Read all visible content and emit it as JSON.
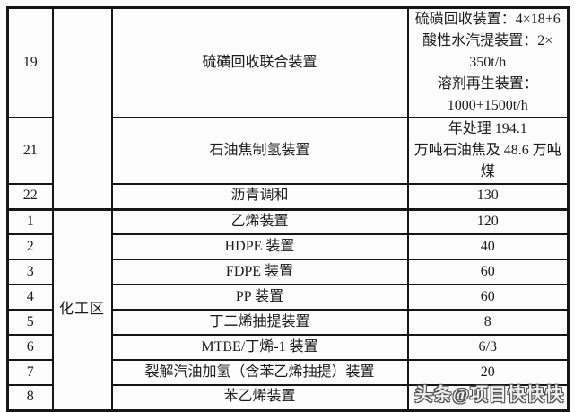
{
  "table": {
    "zone_upper_label": "",
    "zone_lower_label": "化工区",
    "rows": [
      {
        "num": "19",
        "device": "硫磺回收联合装置",
        "value_lines": [
          "硫磺回收装置：4×18+6",
          "酸性水汽提装置：2×",
          "350t/h",
          "溶剂再生装置：",
          "1000+1500t/h"
        ]
      },
      {
        "num": "21",
        "device": "石油焦制氢装置",
        "value_lines": [
          "年处理 194.1",
          "万吨石油焦及 48.6 万吨",
          "煤"
        ]
      },
      {
        "num": "22",
        "device": "沥青调和",
        "value": "130"
      },
      {
        "num": "1",
        "device": "乙烯装置",
        "value": "120"
      },
      {
        "num": "2",
        "device": "HDPE 装置",
        "value": "40"
      },
      {
        "num": "3",
        "device": "FDPE 装置",
        "value": "60"
      },
      {
        "num": "4",
        "device": "PP 装置",
        "value": "60"
      },
      {
        "num": "5",
        "device": "丁二烯抽提装置",
        "value": "8"
      },
      {
        "num": "6",
        "device": "MTBE/丁烯-1 装置",
        "value": "6/3"
      },
      {
        "num": "7",
        "device": "裂解汽油加氢（含苯乙烯抽提）装置",
        "value": "20"
      },
      {
        "num": "8",
        "device": "苯乙烯装置",
        "value": ""
      }
    ]
  },
  "watermark": {
    "text": "头条@项目快快快"
  },
  "colors": {
    "border": "#161616",
    "text": "#1b1b1b",
    "cell_bg": "#fcfcfc"
  }
}
